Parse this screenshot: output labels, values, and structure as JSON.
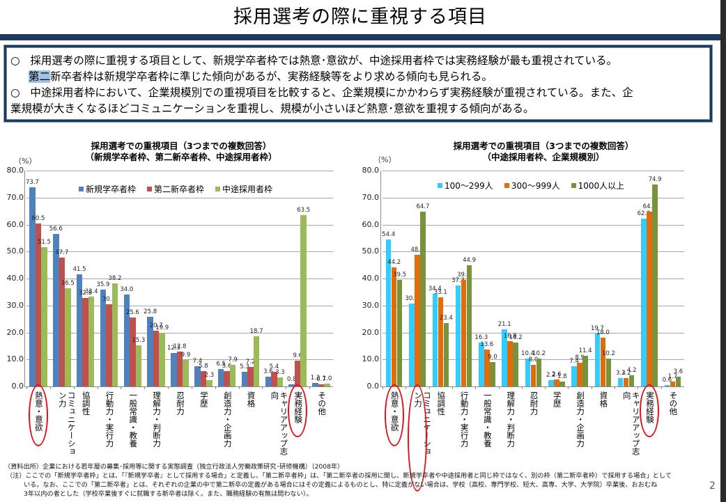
{
  "page": {
    "title": "採用選考の際に重視する項目",
    "page_number": "2",
    "summary": {
      "bullet": "○",
      "line1": "採用選考の際に重視する項目として、新規学卒者枠では熱意･意欲が、中途採用者枠では実務経験が最も重視されている。",
      "line2_highlight": "第二",
      "line2_rest": "新卒者枠は新規学卒者枠に準じた傾向があるが、実務経験等をより求める傾向も見られる。",
      "line3": "中途採用者枠において、企業規模別での重視項目を比較すると、企業規模にかかわらず実務経験が重視されている。また、企",
      "line4": "業規模が大きくなるほどコミュニケーションを重視し、規模が小さいほど熱意･意欲を重視する傾向がある。"
    },
    "footnotes": {
      "source": "（資料出所）企業における若年層の募集･採用等に関する実態調査（独立行政法人労働政策研究･研修機構）（2008年）",
      "note1": "（注）ここでの「新規学卒者枠」とは、「『新規学卒者』として採用する場合」と定義し、「第二新卒者枠」は、「第二新卒者の採用に関し、新規学卒者や中途採用者と同じ枠ではなく、別の枠（第二新卒者枠）で採用する場合」として",
      "note2": "いる。なお、ここでの「第二新卒者」とは、それぞれの企業の中で第二新卒の定義がある場合にはその定義によるものとし、特に定義がない場合は、学校（高校、専門学校、短大、高専、大学、大学院）卒業後、おおむね",
      "note3": "3年以内の者とした（学校卒業後すぐに就職する新卒者は除く。また、職務経験の有無は問わない）。"
    }
  },
  "chart_data": [
    {
      "type": "bar",
      "title": "採用選考での重視項目（3つまでの複数回答）",
      "subtitle": "（新規学卒者枠、第二新卒者枠、中途採用者枠）",
      "ylabel": "（%）",
      "xlabel": "",
      "ylim": [
        0,
        80
      ],
      "yticks": [
        "80.0",
        "70.0",
        "60.0",
        "50.0",
        "40.0",
        "30.0",
        "20.0",
        "10.0",
        "0.0"
      ],
      "grid": true,
      "legend_position": "top-inside",
      "categories": [
        "熱意・意欲",
        "コミュニケーション力",
        "協調性",
        "行動力・実行力",
        "一般常識・教養",
        "理解力・判断力",
        "忍耐力",
        "学歴",
        "創造力・企画力",
        "資格",
        "キャリアアップ志向",
        "実務経験",
        "その他"
      ],
      "highlighted_categories": [
        "熱意・意欲",
        "実務経験"
      ],
      "series": [
        {
          "name": "新規学卒者枠",
          "color": "#4f81bd",
          "values": [
            73.7,
            56.6,
            41.5,
            35.9,
            34.0,
            25.8,
            12.3,
            7.4,
            6.5,
            5.3,
            3.6,
            0.8,
            1.2
          ]
        },
        {
          "name": "第二新卒者枠",
          "color": "#c0504d",
          "values": [
            60.5,
            47.7,
            32.8,
            30.5,
            25.6,
            20.7,
            12.8,
            5.8,
            5.6,
            7.2,
            5.4,
            9.6,
            0.7
          ]
        },
        {
          "name": "中途採用者枠",
          "color": "#9bbb59",
          "values": [
            51.5,
            36.5,
            33.4,
            38.2,
            15.3,
            19.9,
            9.9,
            2.3,
            7.9,
            18.7,
            3.3,
            63.5,
            1.0
          ]
        }
      ]
    },
    {
      "type": "bar",
      "title": "採用選考での重視項目（3つまでの複数回答）",
      "subtitle": "（中途採用者枠、企業規模別）",
      "ylabel": "（%）",
      "xlabel": "",
      "ylim": [
        0,
        80
      ],
      "yticks": [
        "80.0",
        "70.0",
        "60.0",
        "50.0",
        "40.0",
        "30.0",
        "20.0",
        "10.0",
        "0.0"
      ],
      "grid": true,
      "legend_position": "top-inside",
      "categories": [
        "熱意・意欲",
        "コミュニケーション力",
        "協調性",
        "行動力・実行力",
        "一般常識・教養",
        "理解力・判断力",
        "忍耐力",
        "学歴",
        "創造力・企画力",
        "資格",
        "キャリアアップ志向",
        "実務経験",
        "その他"
      ],
      "highlighted_categories": [
        "熱意・意欲",
        "コミュニケーション力",
        "実務経験"
      ],
      "series": [
        {
          "name": "100～299人",
          "color": "#33ccff",
          "values": [
            54.4,
            30.7,
            34.4,
            37.3,
            16.3,
            21.1,
            10.4,
            2.2,
            7.4,
            19.7,
            3.2,
            62.2,
            0.6
          ]
        },
        {
          "name": "300～999人",
          "color": "#e36c0a",
          "values": [
            44.2,
            48.9,
            33.1,
            39.6,
            13.6,
            16.9,
            8.0,
            2.6,
            8.9,
            18.0,
            3.2,
            64.7,
            1.7
          ]
        },
        {
          "name": "1000人以上",
          "color": "#77933c",
          "values": [
            39.5,
            64.7,
            23.4,
            44.9,
            9.0,
            16.2,
            10.2,
            1.8,
            11.4,
            10.2,
            4.2,
            74.9,
            3.6
          ]
        }
      ]
    }
  ]
}
